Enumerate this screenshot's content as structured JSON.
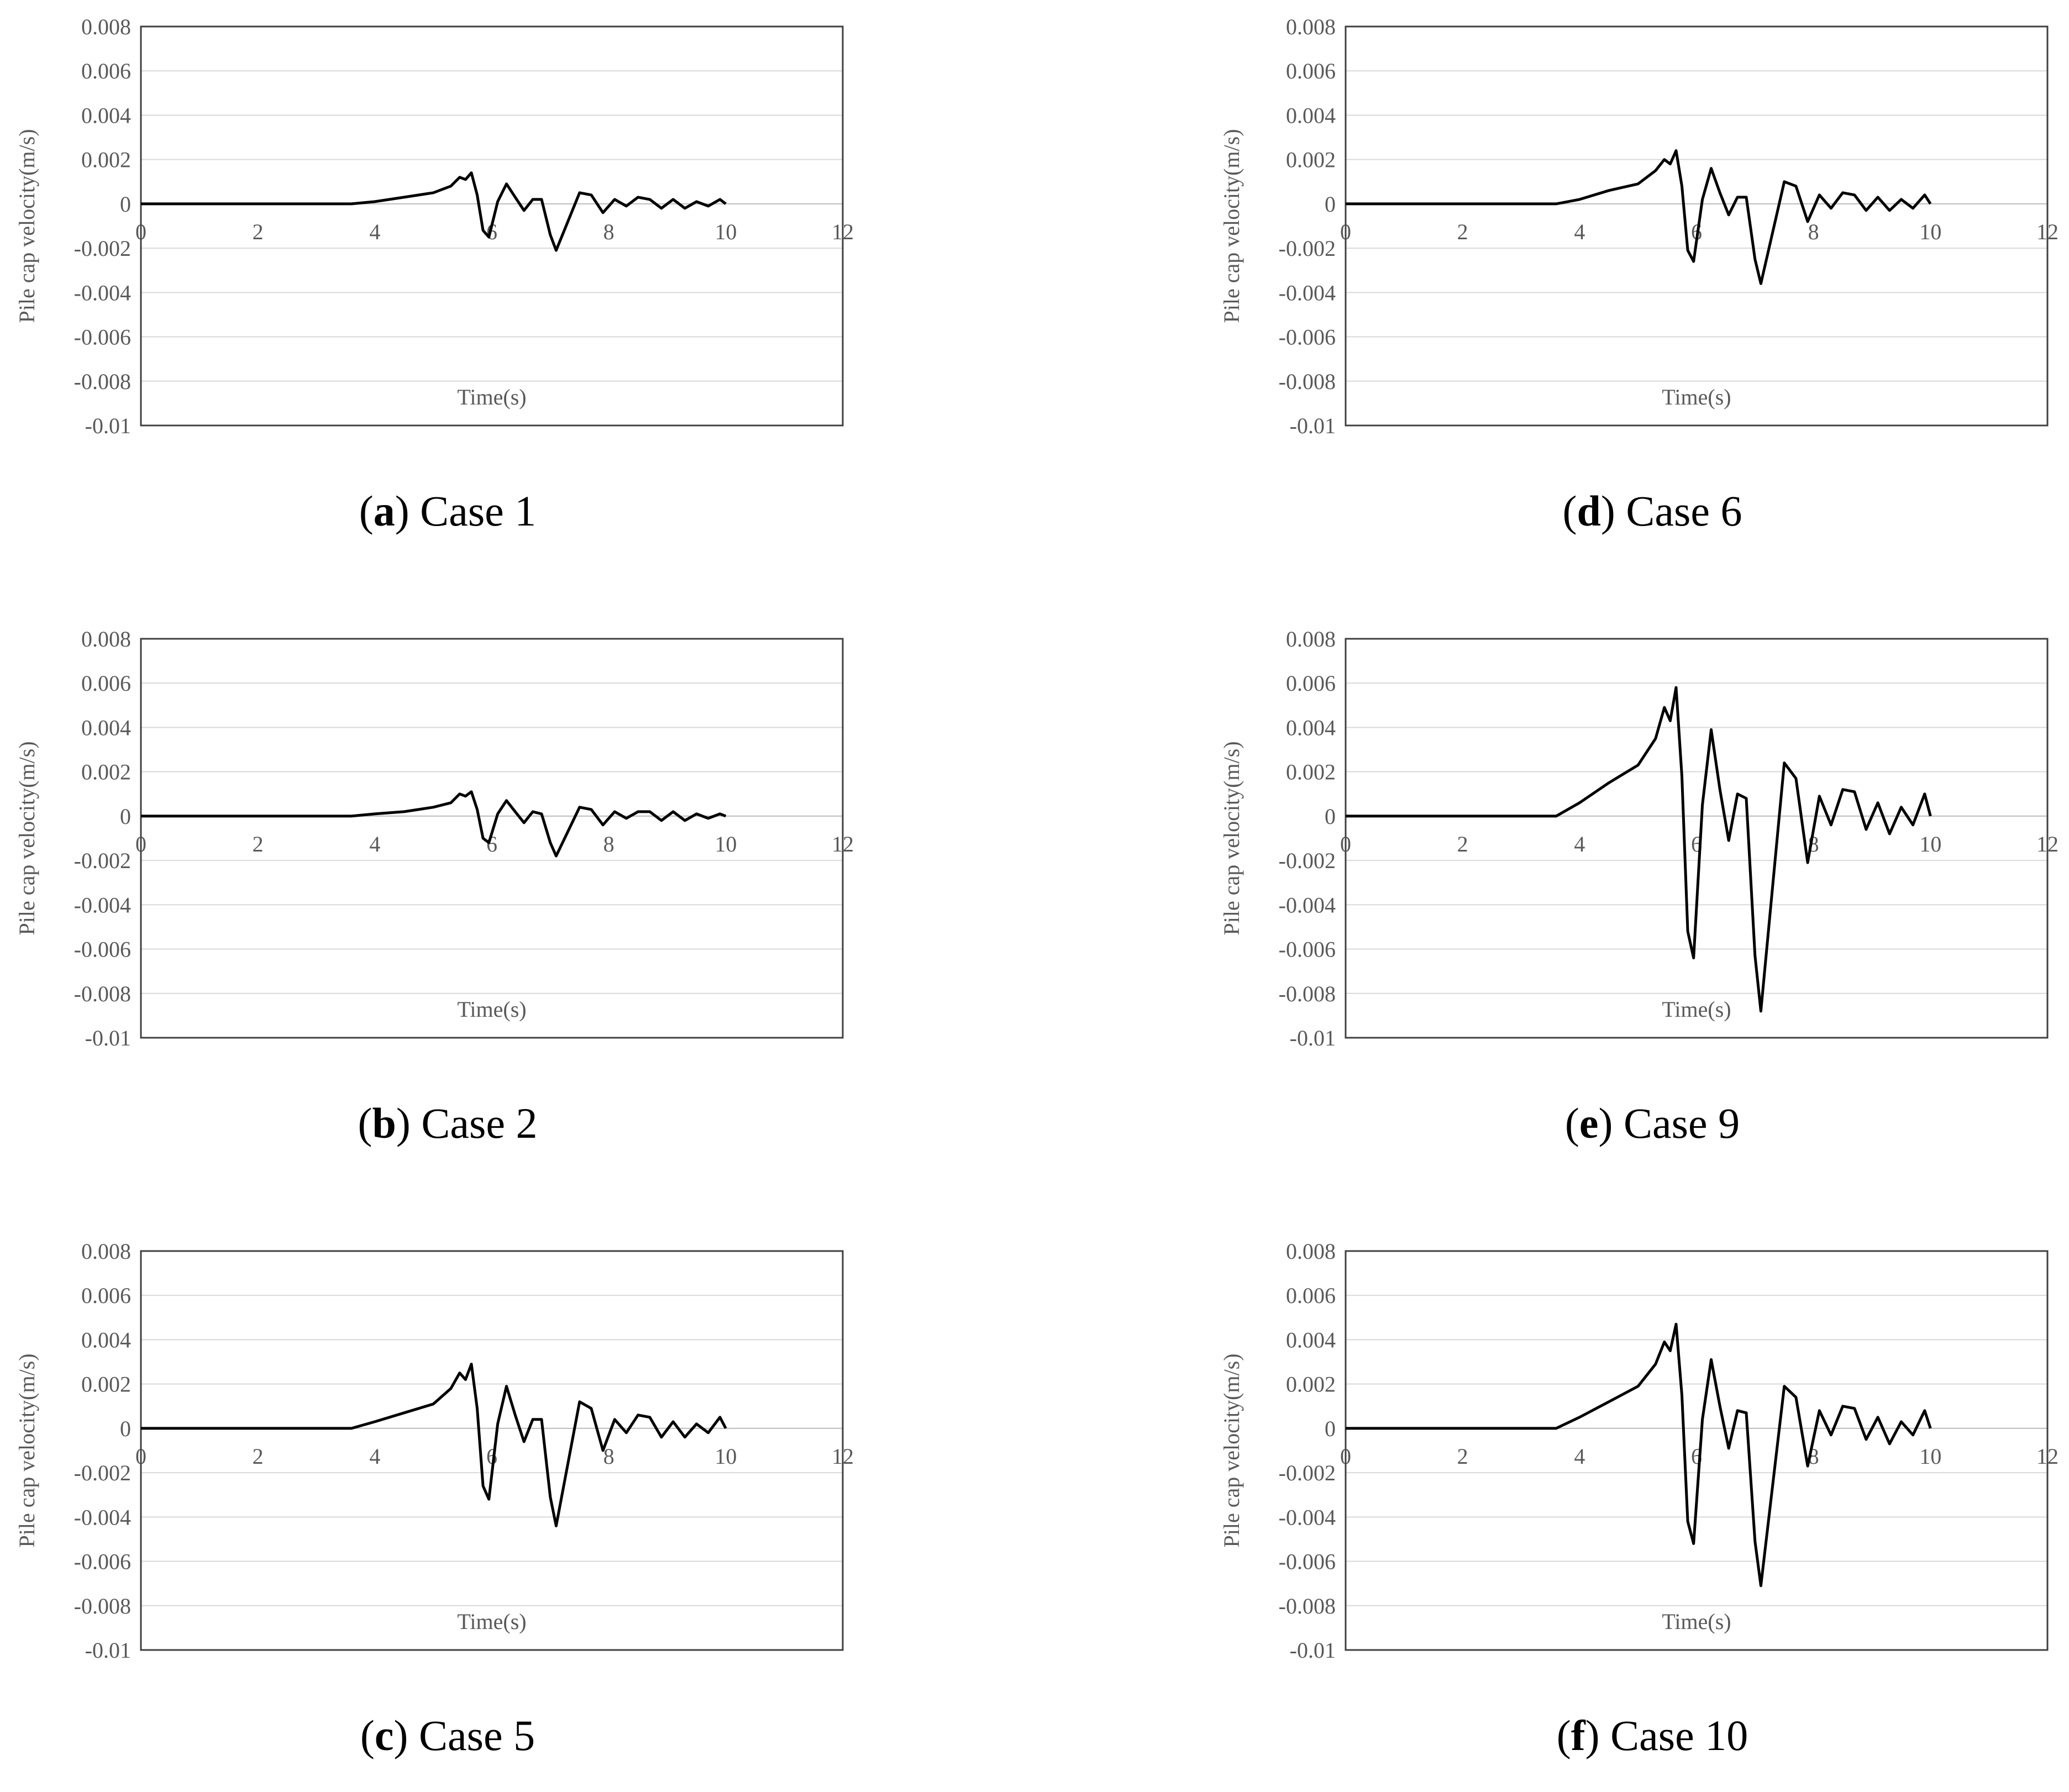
{
  "chart_data": [
    {
      "id": "a",
      "type": "line",
      "letter": "a",
      "case_label": "Case 1",
      "xlabel": "Time(s)",
      "ylabel": "Pile cap velocity(m/s)",
      "xlim": [
        0,
        12
      ],
      "ylim": [
        -0.01,
        0.008
      ],
      "xticks": [
        "0",
        "2",
        "4",
        "6",
        "8",
        "10",
        "12"
      ],
      "yticks": [
        "0.008",
        "0.006",
        "0.004",
        "0.002",
        "0",
        "-0.002",
        "-0.004",
        "-0.006",
        "-0.008",
        "-0.01"
      ],
      "series": [
        {
          "x": [
            0,
            3.6,
            4.0,
            4.5,
            5.0,
            5.3,
            5.45,
            5.55,
            5.65,
            5.75,
            5.85,
            5.95,
            6.1,
            6.25,
            6.4,
            6.55,
            6.7,
            6.85,
            7.0,
            7.1,
            7.3,
            7.5,
            7.7,
            7.9,
            8.1,
            8.3,
            8.5,
            8.7,
            8.9,
            9.1,
            9.3,
            9.5,
            9.7,
            9.9,
            10
          ],
          "y": [
            0,
            0,
            0.0001,
            0.0003,
            0.0005,
            0.0008,
            0.0012,
            0.0011,
            0.0014,
            0.0004,
            -0.0012,
            -0.0015,
            0.0001,
            0.0009,
            0.0003,
            -0.0003,
            0.0002,
            0.0002,
            -0.0014,
            -0.0021,
            -0.0008,
            0.0005,
            0.0004,
            -0.0004,
            0.0002,
            -0.0001,
            0.0003,
            0.0002,
            -0.0002,
            0.0002,
            -0.0002,
            0.0001,
            -0.0001,
            0.0002,
            0
          ]
        }
      ]
    },
    {
      "id": "b",
      "type": "line",
      "letter": "b",
      "case_label": "Case 2",
      "xlabel": "Time(s)",
      "ylabel": "Pile cap velocity(m/s)",
      "xlim": [
        0,
        12
      ],
      "ylim": [
        -0.01,
        0.008
      ],
      "xticks": [
        "0",
        "2",
        "4",
        "6",
        "8",
        "10",
        "12"
      ],
      "yticks": [
        "0.008",
        "0.006",
        "0.004",
        "0.002",
        "0",
        "-0.002",
        "-0.004",
        "-0.006",
        "-0.008",
        "-0.01"
      ],
      "series": [
        {
          "x": [
            0,
            3.6,
            4.0,
            4.5,
            5.0,
            5.3,
            5.45,
            5.55,
            5.65,
            5.75,
            5.85,
            5.95,
            6.1,
            6.25,
            6.4,
            6.55,
            6.7,
            6.85,
            7.0,
            7.1,
            7.3,
            7.5,
            7.7,
            7.9,
            8.1,
            8.3,
            8.5,
            8.7,
            8.9,
            9.1,
            9.3,
            9.5,
            9.7,
            9.9,
            10
          ],
          "y": [
            0,
            0,
            0.0001,
            0.0002,
            0.0004,
            0.0006,
            0.001,
            0.0009,
            0.0011,
            0.0003,
            -0.001,
            -0.0012,
            0.0001,
            0.0007,
            0.0002,
            -0.0003,
            0.0002,
            0.0001,
            -0.0012,
            -0.0018,
            -0.0007,
            0.0004,
            0.0003,
            -0.0004,
            0.0002,
            -0.0001,
            0.0002,
            0.0002,
            -0.0002,
            0.0002,
            -0.0002,
            0.0001,
            -0.0001,
            0.0001,
            0
          ]
        }
      ]
    },
    {
      "id": "c",
      "type": "line",
      "letter": "c",
      "case_label": "Case 5",
      "xlabel": "Time(s)",
      "ylabel": "Pile cap velocity(m/s)",
      "xlim": [
        0,
        12
      ],
      "ylim": [
        -0.01,
        0.008
      ],
      "xticks": [
        "0",
        "2",
        "4",
        "6",
        "8",
        "10",
        "12"
      ],
      "yticks": [
        "0.008",
        "0.006",
        "0.004",
        "0.002",
        "0",
        "-0.002",
        "-0.004",
        "-0.006",
        "-0.008",
        "-0.01"
      ],
      "series": [
        {
          "x": [
            0,
            3.6,
            4.0,
            4.5,
            5.0,
            5.3,
            5.45,
            5.55,
            5.65,
            5.75,
            5.85,
            5.95,
            6.1,
            6.25,
            6.4,
            6.55,
            6.7,
            6.85,
            7.0,
            7.1,
            7.3,
            7.5,
            7.7,
            7.9,
            8.1,
            8.3,
            8.5,
            8.7,
            8.9,
            9.1,
            9.3,
            9.5,
            9.7,
            9.9,
            10
          ],
          "y": [
            0,
            0,
            0.0003,
            0.0007,
            0.0011,
            0.0018,
            0.0025,
            0.0022,
            0.0029,
            0.0009,
            -0.0026,
            -0.0032,
            0.0002,
            0.0019,
            0.0006,
            -0.0006,
            0.0004,
            0.0004,
            -0.0031,
            -0.0044,
            -0.0016,
            0.0012,
            0.0009,
            -0.001,
            0.0004,
            -0.0002,
            0.0006,
            0.0005,
            -0.0004,
            0.0003,
            -0.0004,
            0.0002,
            -0.0002,
            0.0005,
            0
          ]
        }
      ]
    },
    {
      "id": "d",
      "type": "line",
      "letter": "d",
      "case_label": "Case 6",
      "xlabel": "Time(s)",
      "ylabel": "Pile cap velocity(m/s)",
      "xlim": [
        0,
        12
      ],
      "ylim": [
        -0.01,
        0.008
      ],
      "xticks": [
        "0",
        "2",
        "4",
        "6",
        "8",
        "10",
        "12"
      ],
      "yticks": [
        "0.008",
        "0.006",
        "0.004",
        "0.002",
        "0",
        "-0.002",
        "-0.004",
        "-0.006",
        "-0.008",
        "-0.01"
      ],
      "series": [
        {
          "x": [
            0,
            3.6,
            4.0,
            4.5,
            5.0,
            5.3,
            5.45,
            5.55,
            5.65,
            5.75,
            5.85,
            5.95,
            6.1,
            6.25,
            6.4,
            6.55,
            6.7,
            6.85,
            7.0,
            7.1,
            7.3,
            7.5,
            7.7,
            7.9,
            8.1,
            8.3,
            8.5,
            8.7,
            8.9,
            9.1,
            9.3,
            9.5,
            9.7,
            9.9,
            10
          ],
          "y": [
            0,
            0,
            0.0002,
            0.0006,
            0.0009,
            0.0015,
            0.002,
            0.0018,
            0.0024,
            0.0008,
            -0.0021,
            -0.0026,
            0.0002,
            0.0016,
            0.0005,
            -0.0005,
            0.0003,
            0.0003,
            -0.0025,
            -0.0036,
            -0.0013,
            0.001,
            0.0008,
            -0.0008,
            0.0004,
            -0.0002,
            0.0005,
            0.0004,
            -0.0003,
            0.0003,
            -0.0003,
            0.0002,
            -0.0002,
            0.0004,
            0
          ]
        }
      ]
    },
    {
      "id": "e",
      "type": "line",
      "letter": "e",
      "case_label": "Case 9",
      "xlabel": "Time(s)",
      "ylabel": "Pile cap velocity(m/s)",
      "xlim": [
        0,
        12
      ],
      "ylim": [
        -0.01,
        0.008
      ],
      "xticks": [
        "0",
        "2",
        "4",
        "6",
        "8",
        "10",
        "12"
      ],
      "yticks": [
        "0.008",
        "0.006",
        "0.004",
        "0.002",
        "0",
        "-0.002",
        "-0.004",
        "-0.006",
        "-0.008",
        "-0.01"
      ],
      "series": [
        {
          "x": [
            0,
            3.6,
            4.0,
            4.5,
            5.0,
            5.3,
            5.45,
            5.55,
            5.65,
            5.75,
            5.85,
            5.95,
            6.1,
            6.25,
            6.4,
            6.55,
            6.7,
            6.85,
            7.0,
            7.1,
            7.3,
            7.5,
            7.7,
            7.9,
            8.1,
            8.3,
            8.5,
            8.7,
            8.9,
            9.1,
            9.3,
            9.5,
            9.7,
            9.9,
            10
          ],
          "y": [
            0,
            0,
            0.0006,
            0.0015,
            0.0023,
            0.0035,
            0.0049,
            0.0043,
            0.0058,
            0.0018,
            -0.0052,
            -0.0064,
            0.0005,
            0.0039,
            0.0012,
            -0.0011,
            0.001,
            0.0008,
            -0.0063,
            -0.0088,
            -0.0032,
            0.0024,
            0.0017,
            -0.0021,
            0.0009,
            -0.0004,
            0.0012,
            0.0011,
            -0.0006,
            0.0006,
            -0.0008,
            0.0004,
            -0.0004,
            0.001,
            0
          ]
        }
      ]
    },
    {
      "id": "f",
      "type": "line",
      "letter": "f",
      "case_label": "Case 10",
      "xlabel": "Time(s)",
      "ylabel": "Pile cap velocity(m/s)",
      "xlim": [
        0,
        12
      ],
      "ylim": [
        -0.01,
        0.008
      ],
      "xticks": [
        "0",
        "2",
        "4",
        "6",
        "8",
        "10",
        "12"
      ],
      "yticks": [
        "0.008",
        "0.006",
        "0.004",
        "0.002",
        "0",
        "-0.002",
        "-0.004",
        "-0.006",
        "-0.008",
        "-0.01"
      ],
      "series": [
        {
          "x": [
            0,
            3.6,
            4.0,
            4.5,
            5.0,
            5.3,
            5.45,
            5.55,
            5.65,
            5.75,
            5.85,
            5.95,
            6.1,
            6.25,
            6.4,
            6.55,
            6.7,
            6.85,
            7.0,
            7.1,
            7.3,
            7.5,
            7.7,
            7.9,
            8.1,
            8.3,
            8.5,
            8.7,
            8.9,
            9.1,
            9.3,
            9.5,
            9.7,
            9.9,
            10
          ],
          "y": [
            0,
            0,
            0.0005,
            0.0012,
            0.0019,
            0.0029,
            0.0039,
            0.0035,
            0.0047,
            0.0015,
            -0.0042,
            -0.0052,
            0.0004,
            0.0031,
            0.001,
            -0.0009,
            0.0008,
            0.0007,
            -0.0051,
            -0.0071,
            -0.0026,
            0.0019,
            0.0014,
            -0.0017,
            0.0008,
            -0.0003,
            0.001,
            0.0009,
            -0.0005,
            0.0005,
            -0.0007,
            0.0003,
            -0.0003,
            0.0008,
            0
          ]
        }
      ]
    }
  ]
}
